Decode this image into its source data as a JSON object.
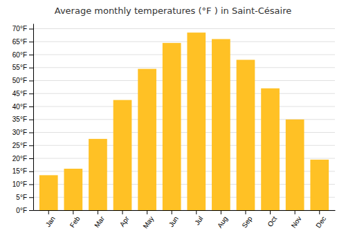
{
  "chart_data": {
    "type": "bar",
    "title": "Average monthly temperatures (°F ) in Saint-Césaire",
    "categories": [
      "Jan",
      "Feb",
      "Mar",
      "Apr",
      "May",
      "Jun",
      "Jul",
      "Aug",
      "Sep",
      "Oct",
      "Nov",
      "Dec"
    ],
    "values": [
      13.5,
      16.0,
      27.5,
      42.5,
      54.5,
      64.5,
      68.5,
      66.0,
      58.0,
      47.0,
      35.0,
      19.5
    ],
    "color": "#FFC125",
    "ylim": [
      0,
      72
    ],
    "yticks": [
      {
        "value": 0,
        "label": "0°F"
      },
      {
        "value": 5,
        "label": "5°F"
      },
      {
        "value": 10,
        "label": "10°F"
      },
      {
        "value": 15,
        "label": "15°F"
      },
      {
        "value": 20,
        "label": "20°F"
      },
      {
        "value": 25,
        "label": "25°F"
      },
      {
        "value": 30,
        "label": "30°F"
      },
      {
        "value": 35,
        "label": "35°F"
      },
      {
        "value": 40,
        "label": "40°F"
      },
      {
        "value": 45,
        "label": "45°F"
      },
      {
        "value": 50,
        "label": "50°F"
      },
      {
        "value": 55,
        "label": "55°F"
      },
      {
        "value": 60,
        "label": "60°F"
      },
      {
        "value": 65,
        "label": "65°F"
      },
      {
        "value": 70,
        "label": "70°F"
      }
    ],
    "grid": true
  }
}
